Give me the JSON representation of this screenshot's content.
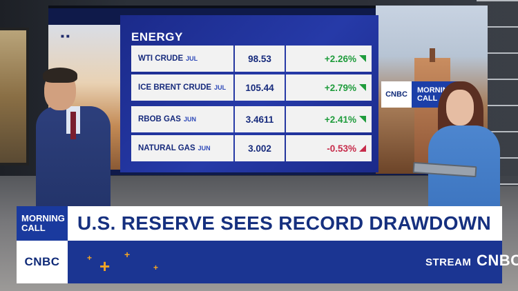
{
  "energy_board": {
    "title": "ENERGY",
    "rows": [
      {
        "name": "WTI CRUDE",
        "month": "JUL",
        "price": "98.53",
        "change": "+2.26%",
        "direction": "up"
      },
      {
        "name": "ICE BRENT CRUDE",
        "month": "JUL",
        "price": "105.44",
        "change": "+2.79%",
        "direction": "up"
      },
      {
        "name": "RBOB GAS",
        "month": "JUN",
        "price": "3.4611",
        "change": "+2.41%",
        "direction": "up"
      },
      {
        "name": "NATURAL GAS",
        "month": "JUN",
        "price": "3.002",
        "change": "-0.53%",
        "direction": "down"
      }
    ],
    "colors": {
      "up": "#1f9c3c",
      "down": "#c72b4a",
      "board": "#263aa8"
    }
  },
  "wall_logo": {
    "network": "CNBC",
    "show_line1": "MORNING",
    "show_line2": "CALL"
  },
  "lower_third": {
    "show_line1": "MORNING",
    "show_line2": "CALL",
    "headline": "U.S. RESERVE SEES RECORD DRAWDOWN",
    "network": "CNBC",
    "stream_label": "STREAM",
    "stream_brand": "CNBC+",
    "colors": {
      "navy": "#1b3592",
      "accent": "#f5a623"
    }
  }
}
